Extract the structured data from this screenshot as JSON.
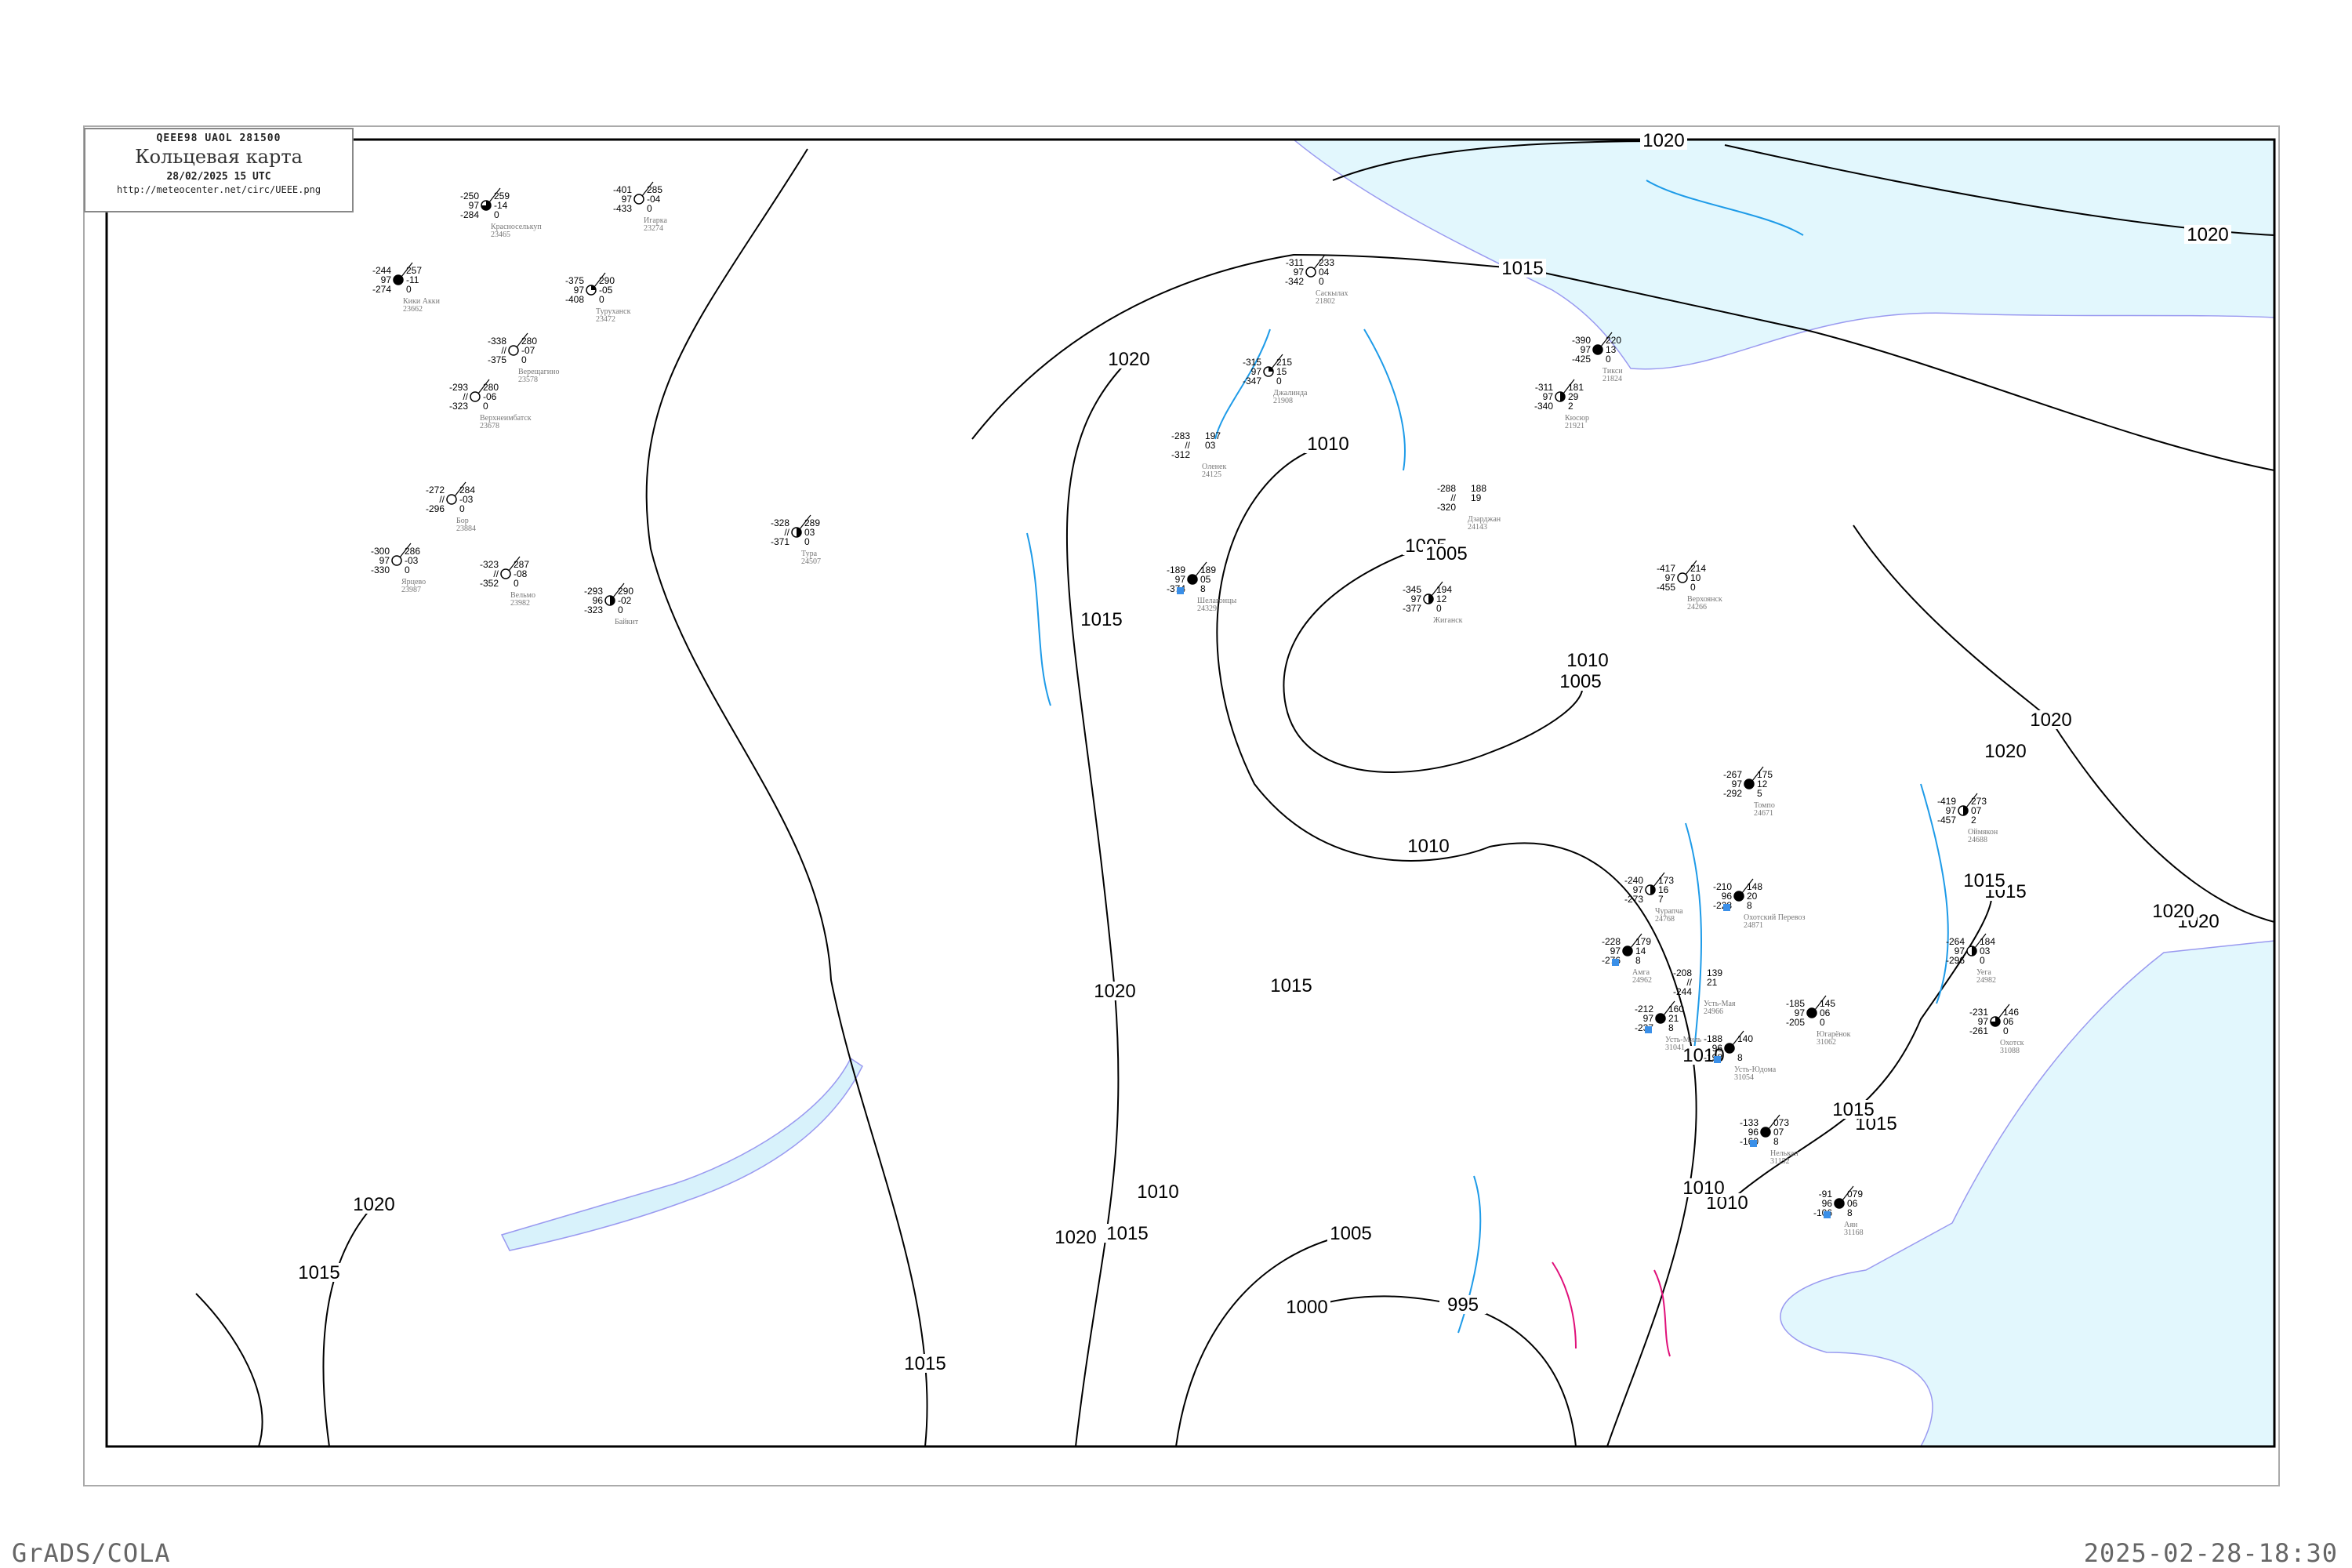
{
  "header": {
    "codes": "QEEE98   UAOL   281500",
    "title": "Кольцевая карта",
    "datetime": "28/02/2025 15 UTC",
    "url": "http://meteocenter.net/circ/UEEE.png"
  },
  "footer": {
    "left": "GrADS/COLA",
    "right": "2025-02-28-18:30"
  },
  "colors": {
    "sea": "#e2f7fd",
    "isobar": "#000000",
    "isallobar": "#1e9be8",
    "river": "#9a9af0",
    "precip_marker": "#3a8fe8",
    "frost_line": "#e0107a"
  },
  "isobar_labels": [
    "1020",
    "1020",
    "1015",
    "1020",
    "1010",
    "1005",
    "1015",
    "1005",
    "1010",
    "1005",
    "1020",
    "1020",
    "1015",
    "1020",
    "1010",
    "1015",
    "1020",
    "1010",
    "1020",
    "1015",
    "1005",
    "1000",
    "995",
    "1015",
    "1010",
    "1015",
    "1010",
    "1015",
    "1020",
    "1015",
    "1010",
    "1020",
    "1015"
  ],
  "stations": [
    {
      "name": "Красноселькуп",
      "id": "23465",
      "t": "-250",
      "vis": "97",
      "td": "-284",
      "p": "259",
      "tend": "-14",
      "precip": "0",
      "cloud": 0.75
    },
    {
      "name": "Кики Акки",
      "id": "23662",
      "t": "-244",
      "vis": "97",
      "td": "-274",
      "p": "257",
      "tend": "-11",
      "precip": "0",
      "cloud": 1
    },
    {
      "name": "Игарка",
      "id": "23274",
      "t": "-401",
      "vis": "97",
      "td": "-433",
      "p": "285",
      "tend": "-04",
      "precip": "0",
      "cloud": 0
    },
    {
      "name": "Туруханск",
      "id": "23472",
      "t": "-375",
      "vis": "97",
      "td": "-408",
      "p": "290",
      "tend": "-05",
      "precip": "0",
      "cloud": 0.25
    },
    {
      "name": "Верещагино",
      "id": "23578",
      "t": "-338",
      "vis": "//",
      "td": "-375",
      "p": "280",
      "tend": "-07",
      "precip": "0",
      "cloud": 0
    },
    {
      "name": "Верхнеимбатск",
      "id": "23678",
      "t": "-293",
      "vis": "//",
      "td": "-323",
      "p": "280",
      "tend": "-06",
      "precip": "0",
      "cloud": 0
    },
    {
      "name": "Бор",
      "id": "23884",
      "t": "-272",
      "vis": "//",
      "td": "-296",
      "p": "284",
      "tend": "-03",
      "precip": "0",
      "cloud": 0
    },
    {
      "name": "Ярцево",
      "id": "23987",
      "t": "-300",
      "vis": "97",
      "td": "-330",
      "p": "286",
      "tend": "-03",
      "precip": "0",
      "cloud": 0
    },
    {
      "name": "Вельмо",
      "id": "23982",
      "t": "-323",
      "vis": "//",
      "td": "-352",
      "p": "287",
      "tend": "-08",
      "precip": "0",
      "cloud": 0
    },
    {
      "name": "Байкит",
      "id": "",
      "t": "-293",
      "vis": "96",
      "td": "-323",
      "p": "290",
      "tend": "-02",
      "precip": "0",
      "cloud": 0.5
    },
    {
      "name": "Тура",
      "id": "24507",
      "t": "-328",
      "vis": "//",
      "td": "-371",
      "p": "289",
      "tend": "03",
      "precip": "0",
      "cloud": 0.5
    },
    {
      "name": "Саскылах",
      "id": "21802",
      "t": "-311",
      "vis": "97",
      "td": "-342",
      "p": "233",
      "tend": "04",
      "precip": "0",
      "cloud": 0
    },
    {
      "name": "Джалинда",
      "id": "21908",
      "t": "-315",
      "vis": "97",
      "td": "-347",
      "p": "215",
      "tend": "15",
      "precip": "0",
      "cloud": 0.25
    },
    {
      "name": "Тикси",
      "id": "21824",
      "t": "-390",
      "vis": "97",
      "td": "-425",
      "p": "220",
      "tend": "13",
      "precip": "0",
      "cloud": 1
    },
    {
      "name": "Кюсюр",
      "id": "21921",
      "t": "-311",
      "vis": "97",
      "td": "-340",
      "p": "181",
      "tend": "29",
      "precip": "2",
      "cloud": 0.5
    },
    {
      "name": "Оленек",
      "id": "24125",
      "t": "-283",
      "vis": "//",
      "td": "-312",
      "p": "197",
      "tend": "03",
      "precip": "",
      "cloud": null
    },
    {
      "name": "Дзарджан",
      "id": "24143",
      "t": "-288",
      "vis": "//",
      "td": "-320",
      "p": "188",
      "tend": "19",
      "precip": "",
      "cloud": null
    },
    {
      "name": "Жиганск",
      "id": "",
      "t": "-345",
      "vis": "97",
      "td": "-377",
      "p": "194",
      "tend": "12",
      "precip": "0",
      "cloud": 0.5
    },
    {
      "name": "Шелагонцы",
      "id": "24329",
      "t": "-189",
      "vis": "97",
      "td": "-374",
      "p": "189",
      "tend": "05",
      "precip": "8",
      "cloud": 1
    },
    {
      "name": "Верхоянск",
      "id": "24266",
      "t": "-417",
      "vis": "97",
      "td": "-455",
      "p": "214",
      "tend": "10",
      "precip": "0",
      "cloud": 0
    },
    {
      "name": "Томпо",
      "id": "24671",
      "t": "-267",
      "vis": "97",
      "td": "-292",
      "p": "175",
      "tend": "12",
      "precip": "5",
      "cloud": 1
    },
    {
      "name": "Оймякон",
      "id": "24688",
      "t": "-419",
      "vis": "97",
      "td": "-457",
      "p": "273",
      "tend": "07",
      "precip": "2",
      "cloud": 0.5
    },
    {
      "name": "Чурапча",
      "id": "24768",
      "t": "-240",
      "vis": "97",
      "td": "-273",
      "p": "173",
      "tend": "16",
      "precip": "7",
      "cloud": 0.5
    },
    {
      "name": "Охотский Перевоз",
      "id": "24871",
      "t": "-210",
      "vis": "96",
      "td": "-228",
      "p": "148",
      "tend": "20",
      "precip": "8",
      "cloud": 1
    },
    {
      "name": "Амга",
      "id": "24962",
      "t": "-228",
      "vis": "97",
      "td": "-276",
      "p": "179",
      "tend": "14",
      "precip": "8",
      "cloud": 1
    },
    {
      "name": "Усть-Мая",
      "id": "24966",
      "t": "-208",
      "vis": "//",
      "td": "-244",
      "p": "139",
      "tend": "21",
      "precip": "",
      "cloud": null
    },
    {
      "name": "Уега",
      "id": "24982",
      "t": "-264",
      "vis": "97",
      "td": "-296",
      "p": "184",
      "tend": "03",
      "precip": "0",
      "cloud": 0.5
    },
    {
      "name": "Югарёнок",
      "id": "31062",
      "t": "-185",
      "vis": "97",
      "td": "-205",
      "p": "145",
      "tend": "06",
      "precip": "0",
      "cloud": 1
    },
    {
      "name": "Усть-Миль",
      "id": "31041",
      "t": "-212",
      "vis": "97",
      "td": "-237",
      "p": "160",
      "tend": "21",
      "precip": "8",
      "cloud": 1
    },
    {
      "name": "Усть-Юдома",
      "id": "31054",
      "t": "-188",
      "vis": "96",
      "td": "-198",
      "p": "140",
      "tend": "",
      "precip": "8",
      "cloud": 1
    },
    {
      "name": "Охотск",
      "id": "31088",
      "t": "-231",
      "vis": "97",
      "td": "-261",
      "p": "146",
      "tend": "06",
      "precip": "0",
      "cloud": 0.75
    },
    {
      "name": "Нелькан",
      "id": "31152",
      "t": "-133",
      "vis": "96",
      "td": "-160",
      "p": "073",
      "tend": "07",
      "precip": "8",
      "cloud": 1
    },
    {
      "name": "Аян",
      "id": "31168",
      "t": "-91",
      "vis": "96",
      "td": "-106",
      "p": "079",
      "tend": "06",
      "precip": "8",
      "cloud": 1
    }
  ]
}
